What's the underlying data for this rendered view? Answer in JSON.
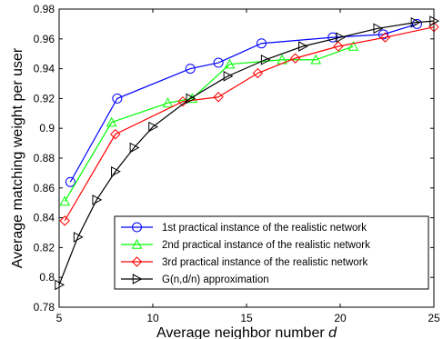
{
  "chart_data": {
    "type": "line",
    "xlabel_prefix": "Average neighbor number ",
    "xlabel_var": "d",
    "ylabel": "Average matching weight per user",
    "xlim": [
      5,
      25
    ],
    "ylim": [
      0.78,
      0.98
    ],
    "x_ticks": [
      "5",
      "10",
      "15",
      "20",
      "25"
    ],
    "x_tick_values": [
      5,
      10,
      15,
      20,
      25
    ],
    "y_ticks": [
      "0.78",
      "0.8",
      "0.82",
      "0.84",
      "0.86",
      "0.88",
      "0.9",
      "0.92",
      "0.94",
      "0.96",
      "0.98"
    ],
    "y_tick_values": [
      0.78,
      0.8,
      0.82,
      0.84,
      0.86,
      0.88,
      0.9,
      0.92,
      0.94,
      0.96,
      0.98
    ],
    "grid": false,
    "legend_position": "bottom-right",
    "series": [
      {
        "name": "1st practical instance of the realistic network",
        "color": "#0000ff",
        "marker": "circle",
        "x": [
          5.6,
          8.1,
          12.0,
          13.5,
          15.8,
          19.6,
          22.3,
          24.1
        ],
        "y": [
          0.864,
          0.92,
          0.94,
          0.944,
          0.957,
          0.961,
          0.963,
          0.97
        ]
      },
      {
        "name": "2nd practical instance of the realistic network",
        "color": "#00ff00",
        "marker": "triangle-up",
        "x": [
          5.3,
          7.8,
          10.8,
          12.1,
          14.1,
          16.9,
          18.7,
          20.7
        ],
        "y": [
          0.851,
          0.904,
          0.917,
          0.92,
          0.943,
          0.946,
          0.946,
          0.955
        ]
      },
      {
        "name": "3rd practical instance of the realistic network",
        "color": "#ff0000",
        "marker": "diamond",
        "x": [
          5.3,
          8.0,
          11.6,
          13.5,
          15.6,
          17.6,
          19.9,
          22.4,
          25.0
        ],
        "y": [
          0.838,
          0.896,
          0.918,
          0.921,
          0.937,
          0.947,
          0.955,
          0.961,
          0.968
        ]
      },
      {
        "name": "G(n,d/n) approximation",
        "color": "#000000",
        "marker": "triangle-right",
        "x": [
          5.0,
          6.0,
          7.0,
          8.0,
          9.0,
          10.0,
          12.0,
          14.0,
          16.0,
          18.0,
          20.0,
          22.0,
          24.0,
          25.0
        ],
        "y": [
          0.795,
          0.827,
          0.852,
          0.871,
          0.887,
          0.901,
          0.92,
          0.935,
          0.946,
          0.955,
          0.961,
          0.967,
          0.971,
          0.972
        ]
      }
    ]
  }
}
